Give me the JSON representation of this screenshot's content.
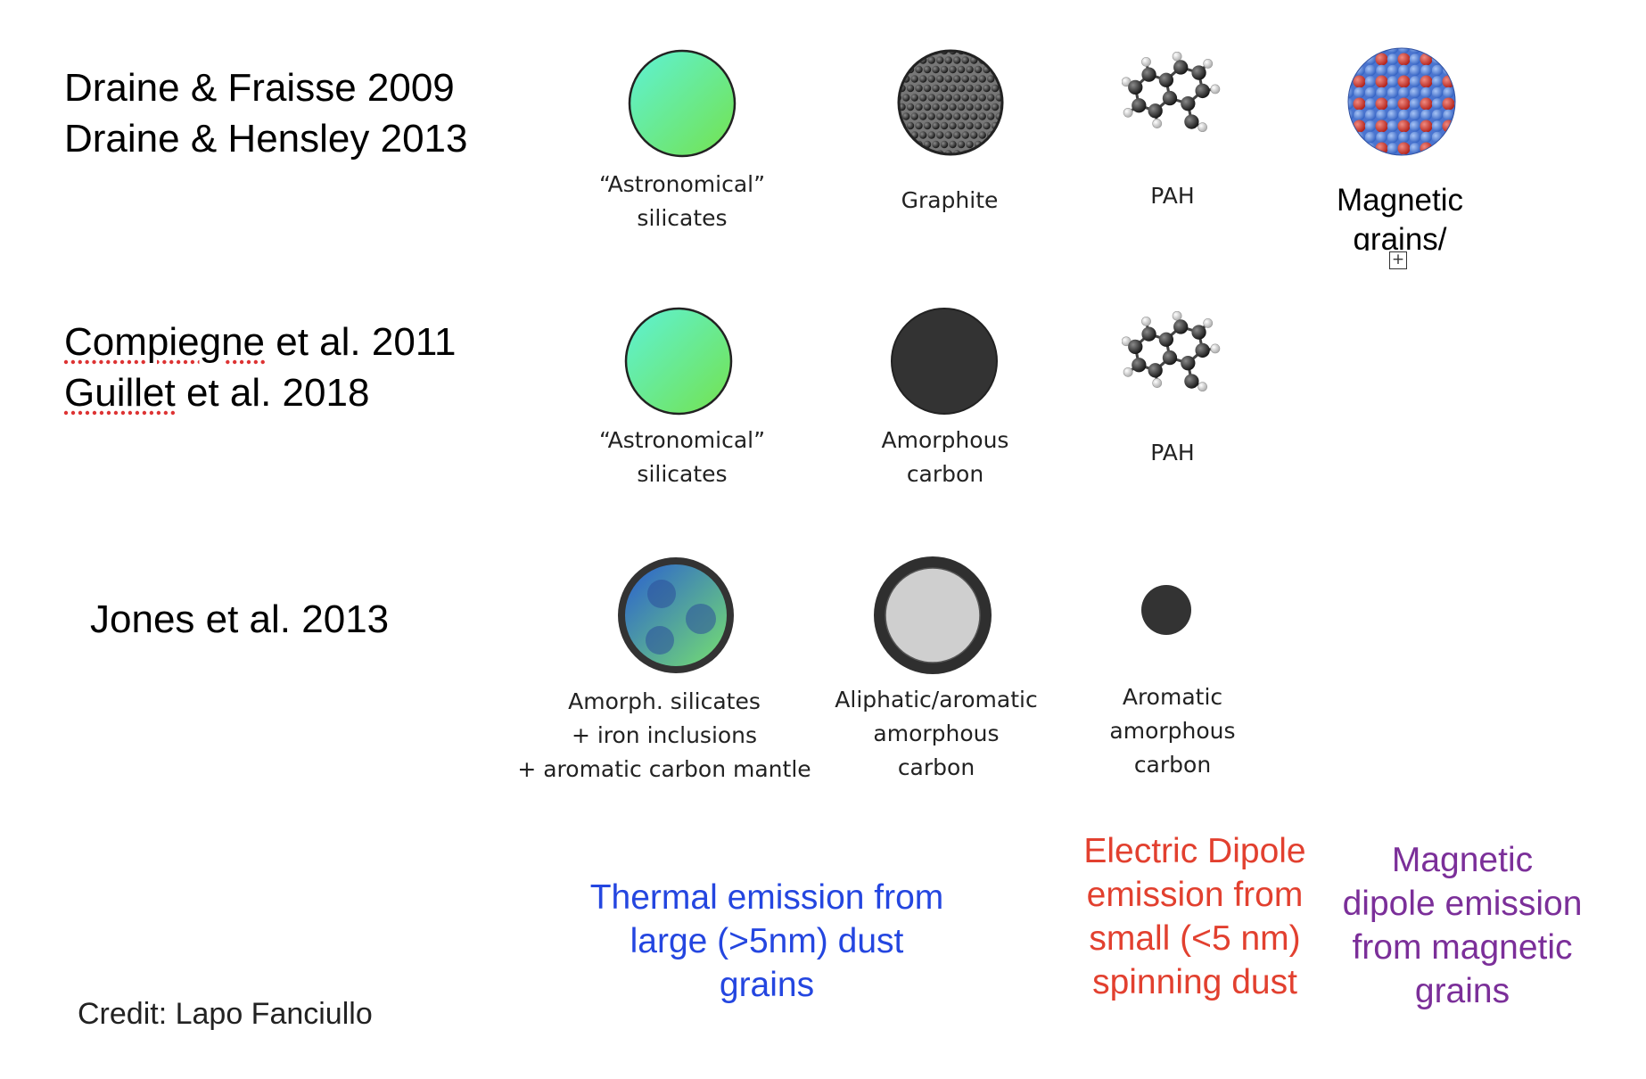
{
  "models": [
    {
      "refs": [
        "Draine & Fraisse 2009",
        "Draine & Hensley 2013"
      ],
      "grains": [
        {
          "label": "“Astronomical”\nsilicates",
          "icon": "silicate-sphere-icon"
        },
        {
          "label": "Graphite",
          "icon": "graphite-lattice-icon"
        },
        {
          "label": "PAH",
          "icon": "pah-molecule-icon"
        },
        {
          "label": "Magnetic\ngrains/",
          "icon": "magnetic-lattice-icon"
        }
      ]
    },
    {
      "refs": [
        {
          "name": "Compiegne",
          "rest": " et al. 2011"
        },
        {
          "name": "Guillet",
          "rest": " et al. 2018"
        }
      ],
      "grains": [
        {
          "label": "“Astronomical”\nsilicates",
          "icon": "silicate-sphere-icon"
        },
        {
          "label": "Amorphous\ncarbon",
          "icon": "amorphous-carbon-sphere-icon"
        },
        {
          "label": "PAH",
          "icon": "pah-molecule-icon"
        }
      ]
    },
    {
      "refs": [
        "Jones et al. 2013"
      ],
      "grains": [
        {
          "label": "Amorph. silicates\n+ iron inclusions\n+ aromatic carbon mantle",
          "icon": "mantled-silicate-icon"
        },
        {
          "label": "Aliphatic/aromatic\namorphous\ncarbon",
          "icon": "core-mantle-carbon-icon"
        },
        {
          "label": "Aromatic\namorphous\ncarbon",
          "icon": "small-carbon-grain-icon"
        }
      ]
    }
  ],
  "emission_categories": [
    {
      "text": "Thermal emission from\nlarge (>5nm) dust\ngrains",
      "color": "#2446e0"
    },
    {
      "text": "Electric Dipole\nemission from\nsmall (<5 nm)\nspinning dust",
      "color": "#e2402f"
    },
    {
      "text": "Magnetic\ndipole emission\nfrom magnetic\ngrains",
      "color": "#7b2f99"
    }
  ],
  "credit": "Credit: Lapo Fanciullo",
  "colors": {
    "silicate_light": "#62efc9",
    "silicate_dark": "#6ee55c",
    "carbon": "#333333",
    "iron_blue": "#3a6bd1",
    "oxygen_red": "#c42a20"
  }
}
